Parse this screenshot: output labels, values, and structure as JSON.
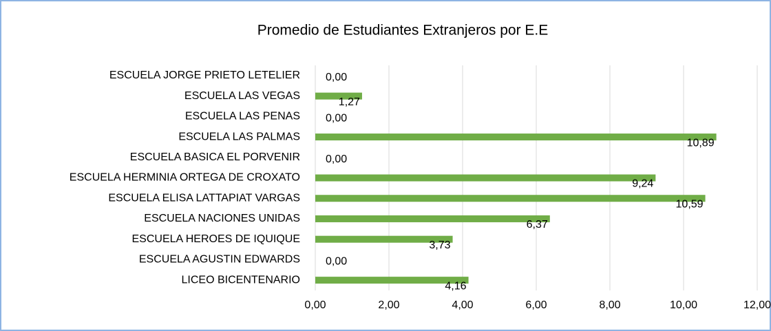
{
  "chart_data": {
    "type": "bar",
    "orientation": "horizontal",
    "title": "Promedio de Estudiantes Extranjeros por E.E",
    "categories": [
      "ESCUELA JORGE PRIETO LETELIER",
      "ESCUELA LAS VEGAS",
      "ESCUELA LAS PENAS",
      "ESCUELA LAS PALMAS",
      "ESCUELA BASICA EL PORVENIR",
      "ESCUELA HERMINIA ORTEGA DE CROXATO",
      "ESCUELA ELISA LATTAPIAT VARGAS",
      "ESCUELA NACIONES UNIDAS",
      "ESCUELA HEROES DE IQUIQUE",
      "ESCUELA AGUSTIN EDWARDS",
      "LICEO BICENTENARIO"
    ],
    "values": [
      0,
      1.27,
      0,
      10.89,
      0,
      9.24,
      10.59,
      6.37,
      3.73,
      0,
      4.16
    ],
    "value_labels": [
      "0,00",
      "1,27",
      "0,00",
      "10,89",
      "0,00",
      "9,24",
      "10,59",
      "6,37",
      "3,73",
      "0,00",
      "4,16"
    ],
    "color": "#70ad47",
    "xlim": [
      0,
      12
    ],
    "xticks": [
      {
        "value": 0,
        "label": "0,00"
      },
      {
        "value": 2,
        "label": "2,00"
      },
      {
        "value": 4,
        "label": "4,00"
      },
      {
        "value": 6,
        "label": "6,00"
      },
      {
        "value": 8,
        "label": "8,00"
      },
      {
        "value": 10,
        "label": "10,00"
      },
      {
        "value": 12,
        "label": "12,00"
      }
    ],
    "grid": true
  }
}
